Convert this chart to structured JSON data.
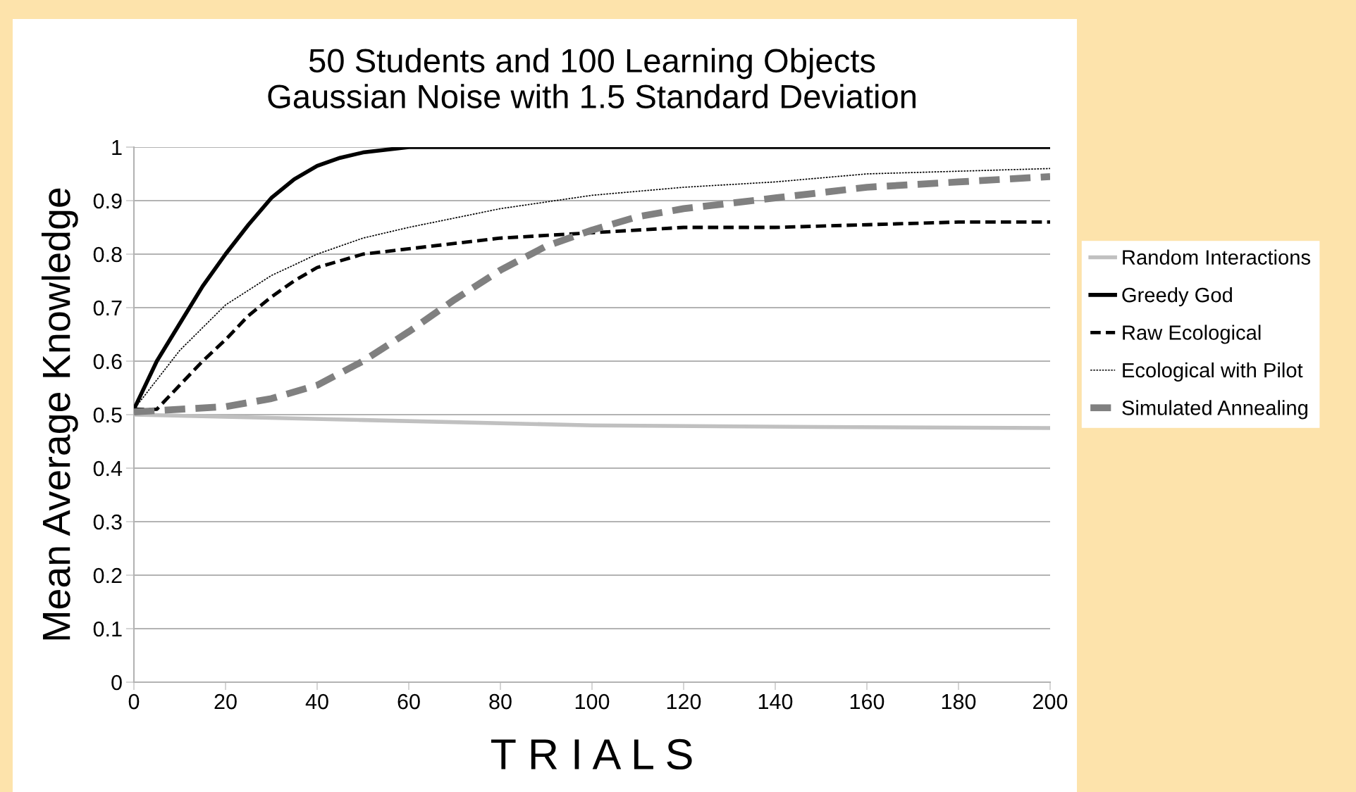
{
  "chart_data": {
    "type": "line",
    "title": "50 Students and 100 Learning Objects\nGaussian Noise with 1.5 Standard Deviation",
    "xlabel": "T R I A L S",
    "ylabel": "Mean Average Knowledge",
    "xlim": [
      0,
      200
    ],
    "xticks": [
      0,
      20,
      40,
      60,
      80,
      100,
      120,
      140,
      160,
      180,
      200
    ],
    "ylim": [
      0,
      1
    ],
    "yticks": [
      0,
      0.1,
      0.2,
      0.3,
      0.4,
      0.5,
      0.6,
      0.7,
      0.8,
      0.9,
      1
    ],
    "grid": "y",
    "legend": "right",
    "marker": "none",
    "series": [
      {
        "name": "Random Interactions",
        "color": "#c0c0c0",
        "line_style": "solid",
        "x": [
          0,
          50,
          100,
          150,
          200
        ],
        "values": [
          0.5,
          0.49,
          0.48,
          0.477,
          0.475
        ]
      },
      {
        "name": "Greedy God",
        "color": "#000000",
        "line_style": "solid",
        "x": [
          0,
          5,
          10,
          15,
          20,
          25,
          30,
          35,
          40,
          45,
          50,
          55,
          60,
          70,
          200
        ],
        "values": [
          0.51,
          0.6,
          0.67,
          0.74,
          0.8,
          0.855,
          0.905,
          0.94,
          0.965,
          0.98,
          0.99,
          0.995,
          1.0,
          1.0,
          1.0
        ]
      },
      {
        "name": "Raw Ecological",
        "color": "#000000",
        "line_style": "dashed",
        "x": [
          0,
          5,
          10,
          15,
          20,
          25,
          30,
          35,
          40,
          50,
          60,
          80,
          100,
          120,
          140,
          160,
          180,
          200
        ],
        "values": [
          0.51,
          0.51,
          0.555,
          0.6,
          0.64,
          0.685,
          0.72,
          0.75,
          0.775,
          0.8,
          0.81,
          0.83,
          0.84,
          0.85,
          0.85,
          0.855,
          0.86,
          0.86
        ]
      },
      {
        "name": "Ecological with Pilot",
        "color": "#000000",
        "line_style": "dotted",
        "x": [
          0,
          10,
          20,
          30,
          40,
          50,
          60,
          80,
          100,
          120,
          140,
          160,
          180,
          200
        ],
        "values": [
          0.51,
          0.62,
          0.705,
          0.76,
          0.8,
          0.83,
          0.85,
          0.885,
          0.91,
          0.925,
          0.935,
          0.95,
          0.955,
          0.96
        ]
      },
      {
        "name": "Simulated Annealing",
        "color": "#808080",
        "line_style": "dashed",
        "x": [
          0,
          10,
          20,
          30,
          40,
          50,
          60,
          70,
          80,
          90,
          100,
          110,
          120,
          140,
          160,
          180,
          200
        ],
        "values": [
          0.505,
          0.51,
          0.515,
          0.53,
          0.555,
          0.6,
          0.655,
          0.715,
          0.77,
          0.815,
          0.845,
          0.87,
          0.885,
          0.905,
          0.925,
          0.935,
          0.945
        ]
      }
    ]
  }
}
